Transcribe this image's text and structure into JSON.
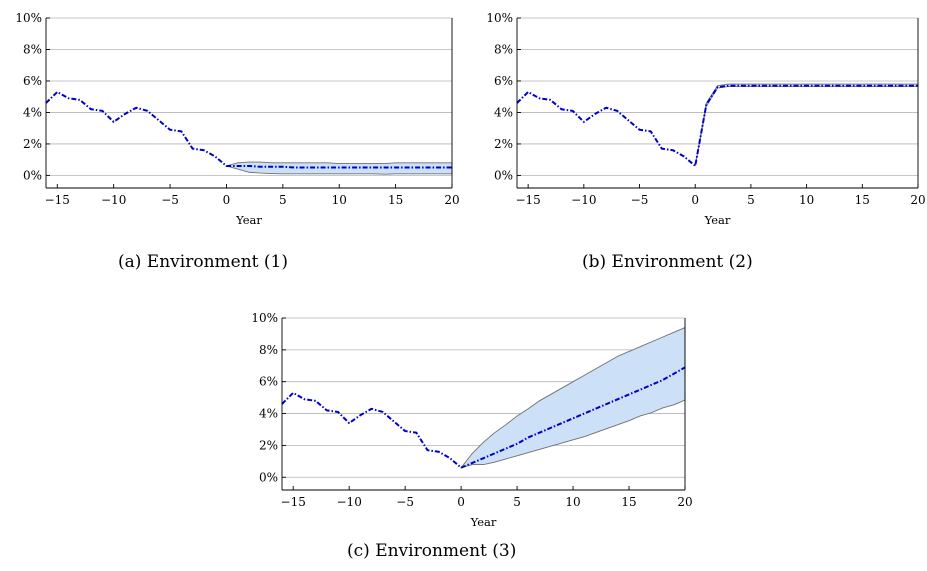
{
  "chart_data": [
    {
      "type": "line",
      "caption": "(a)  Environment (1)",
      "xlabel": "Year",
      "ylabel": "",
      "xlim": [
        -16,
        20
      ],
      "ylim": [
        -0.8,
        10
      ],
      "xticks": [
        -15,
        -10,
        -5,
        0,
        5,
        10,
        15,
        20
      ],
      "yticks": [
        0,
        2,
        4,
        6,
        8,
        10
      ],
      "ytick_format": "percent",
      "grid": "horizontal",
      "series": [
        {
          "style": "dash-dot",
          "color": "#0000cc",
          "x": [
            -16,
            -15,
            -14,
            -13,
            -12,
            -11,
            -10,
            -9,
            -8,
            -7,
            -6,
            -5,
            -4,
            -3,
            -2,
            -1,
            0,
            1,
            2,
            3,
            4,
            5,
            6,
            7,
            8,
            9,
            10,
            11,
            12,
            13,
            14,
            15,
            16,
            17,
            18,
            19,
            20
          ],
          "y": [
            4.6,
            5.3,
            4.9,
            4.8,
            4.2,
            4.1,
            3.4,
            3.9,
            4.3,
            4.1,
            3.5,
            2.9,
            2.8,
            1.7,
            1.6,
            1.2,
            0.6,
            0.6,
            0.6,
            0.55,
            0.55,
            0.55,
            0.5,
            0.5,
            0.5,
            0.5,
            0.5,
            0.5,
            0.5,
            0.5,
            0.5,
            0.5,
            0.5,
            0.5,
            0.5,
            0.5,
            0.5
          ]
        }
      ],
      "band": {
        "fill": "#cce0f7",
        "x": [
          0,
          1,
          2,
          3,
          4,
          5,
          6,
          7,
          8,
          9,
          10,
          11,
          12,
          13,
          14,
          15,
          16,
          17,
          18,
          19,
          20
        ],
        "lower": [
          0.6,
          0.4,
          0.2,
          0.15,
          0.12,
          0.1,
          0.1,
          0.1,
          0.1,
          0.1,
          0.1,
          0.1,
          0.1,
          0.1,
          0.08,
          0.1,
          0.1,
          0.1,
          0.1,
          0.1,
          0.1
        ],
        "upper": [
          0.6,
          0.8,
          0.85,
          0.85,
          0.8,
          0.8,
          0.8,
          0.8,
          0.8,
          0.8,
          0.75,
          0.75,
          0.75,
          0.75,
          0.75,
          0.8,
          0.8,
          0.8,
          0.8,
          0.8,
          0.8
        ]
      }
    },
    {
      "type": "line",
      "caption": "(b)  Environment (2)",
      "xlabel": "Year",
      "ylabel": "",
      "xlim": [
        -16,
        20
      ],
      "ylim": [
        -0.8,
        10
      ],
      "xticks": [
        -15,
        -10,
        -5,
        0,
        5,
        10,
        15,
        20
      ],
      "yticks": [
        0,
        2,
        4,
        6,
        8,
        10
      ],
      "ytick_format": "percent",
      "grid": "horizontal",
      "series": [
        {
          "style": "dash-dot",
          "color": "#0000cc",
          "x": [
            -16,
            -15,
            -14,
            -13,
            -12,
            -11,
            -10,
            -9,
            -8,
            -7,
            -6,
            -5,
            -4,
            -3,
            -2,
            -1,
            0,
            1,
            2,
            3,
            4,
            5,
            6,
            7,
            8,
            9,
            10,
            11,
            12,
            13,
            14,
            15,
            16,
            17,
            18,
            19,
            20
          ],
          "y": [
            4.6,
            5.3,
            4.9,
            4.8,
            4.2,
            4.1,
            3.4,
            3.9,
            4.3,
            4.1,
            3.5,
            2.9,
            2.8,
            1.7,
            1.6,
            1.2,
            0.6,
            4.5,
            5.6,
            5.7,
            5.7,
            5.7,
            5.7,
            5.7,
            5.7,
            5.7,
            5.7,
            5.7,
            5.7,
            5.7,
            5.7,
            5.7,
            5.7,
            5.7,
            5.7,
            5.7,
            5.7
          ]
        }
      ],
      "band": {
        "fill": "#cce0f7",
        "x": [
          0,
          1,
          2,
          3,
          4,
          5,
          6,
          7,
          8,
          9,
          10,
          11,
          12,
          13,
          14,
          15,
          16,
          17,
          18,
          19,
          20
        ],
        "lower": [
          0.6,
          4.4,
          5.55,
          5.65,
          5.65,
          5.65,
          5.65,
          5.65,
          5.65,
          5.65,
          5.65,
          5.65,
          5.65,
          5.65,
          5.65,
          5.65,
          5.65,
          5.65,
          5.65,
          5.65,
          5.65
        ],
        "upper": [
          0.6,
          4.6,
          5.7,
          5.8,
          5.8,
          5.8,
          5.8,
          5.8,
          5.8,
          5.8,
          5.8,
          5.8,
          5.8,
          5.8,
          5.8,
          5.8,
          5.8,
          5.8,
          5.8,
          5.8,
          5.8
        ]
      }
    },
    {
      "type": "line",
      "caption": "(c)  Environment (3)",
      "xlabel": "Year",
      "ylabel": "",
      "xlim": [
        -16,
        20
      ],
      "ylim": [
        -0.8,
        10
      ],
      "xticks": [
        -15,
        -10,
        -5,
        0,
        5,
        10,
        15,
        20
      ],
      "yticks": [
        0,
        2,
        4,
        6,
        8,
        10
      ],
      "ytick_format": "percent",
      "grid": "horizontal",
      "series": [
        {
          "style": "dash-dot",
          "color": "#0000cc",
          "x": [
            -16,
            -15,
            -14,
            -13,
            -12,
            -11,
            -10,
            -9,
            -8,
            -7,
            -6,
            -5,
            -4,
            -3,
            -2,
            -1,
            0,
            1,
            2,
            3,
            4,
            5,
            6,
            7,
            8,
            9,
            10,
            11,
            12,
            13,
            14,
            15,
            16,
            17,
            18,
            19,
            20
          ],
          "y": [
            4.6,
            5.3,
            4.9,
            4.8,
            4.2,
            4.1,
            3.4,
            3.9,
            4.3,
            4.1,
            3.5,
            2.9,
            2.8,
            1.7,
            1.6,
            1.2,
            0.6,
            0.9,
            1.2,
            1.5,
            1.8,
            2.1,
            2.5,
            2.8,
            3.1,
            3.4,
            3.7,
            4.0,
            4.3,
            4.6,
            4.9,
            5.2,
            5.5,
            5.8,
            6.1,
            6.5,
            6.9
          ]
        }
      ],
      "band": {
        "fill": "#cce0f7",
        "x": [
          0,
          1,
          2,
          3,
          4,
          5,
          6,
          7,
          8,
          9,
          10,
          11,
          12,
          13,
          14,
          15,
          16,
          17,
          18,
          19,
          20
        ],
        "lower": [
          0.6,
          0.8,
          0.8,
          0.95,
          1.15,
          1.35,
          1.55,
          1.75,
          1.95,
          2.15,
          2.35,
          2.55,
          2.8,
          3.05,
          3.3,
          3.55,
          3.85,
          4.05,
          4.35,
          4.55,
          4.85
        ],
        "upper": [
          0.6,
          1.5,
          2.2,
          2.8,
          3.3,
          3.85,
          4.3,
          4.8,
          5.2,
          5.6,
          6.0,
          6.4,
          6.8,
          7.2,
          7.6,
          7.9,
          8.2,
          8.5,
          8.8,
          9.1,
          9.4
        ]
      }
    }
  ]
}
